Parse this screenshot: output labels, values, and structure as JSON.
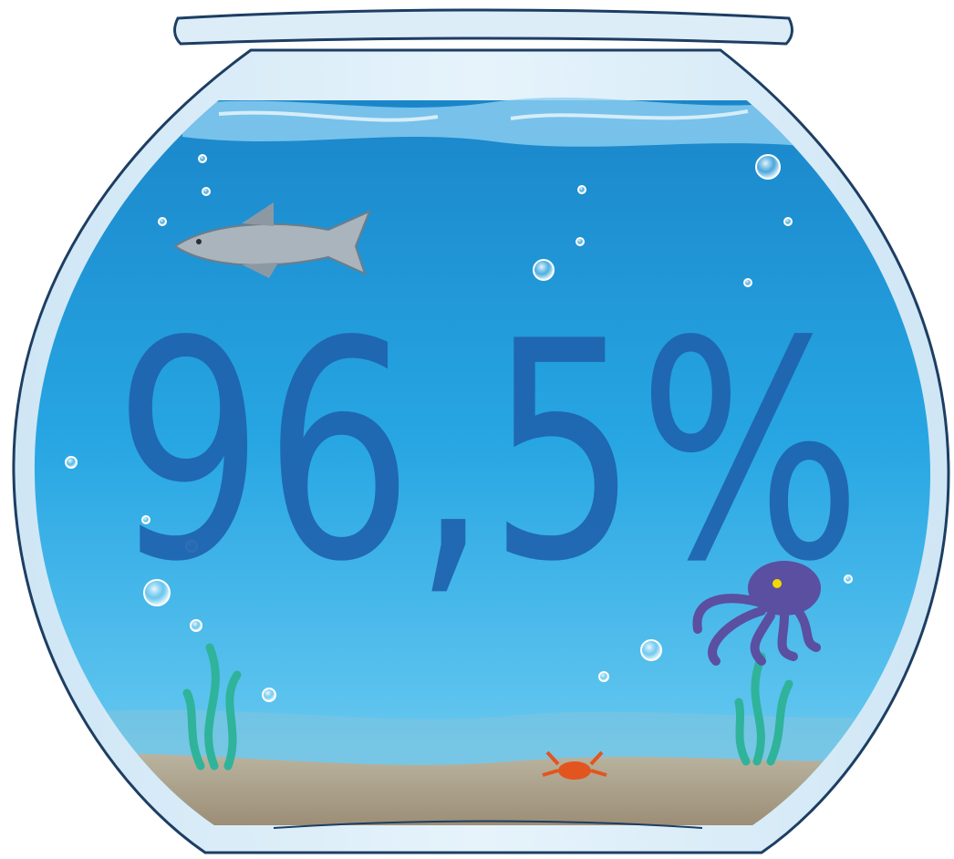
{
  "headline": "96,5%"
}
